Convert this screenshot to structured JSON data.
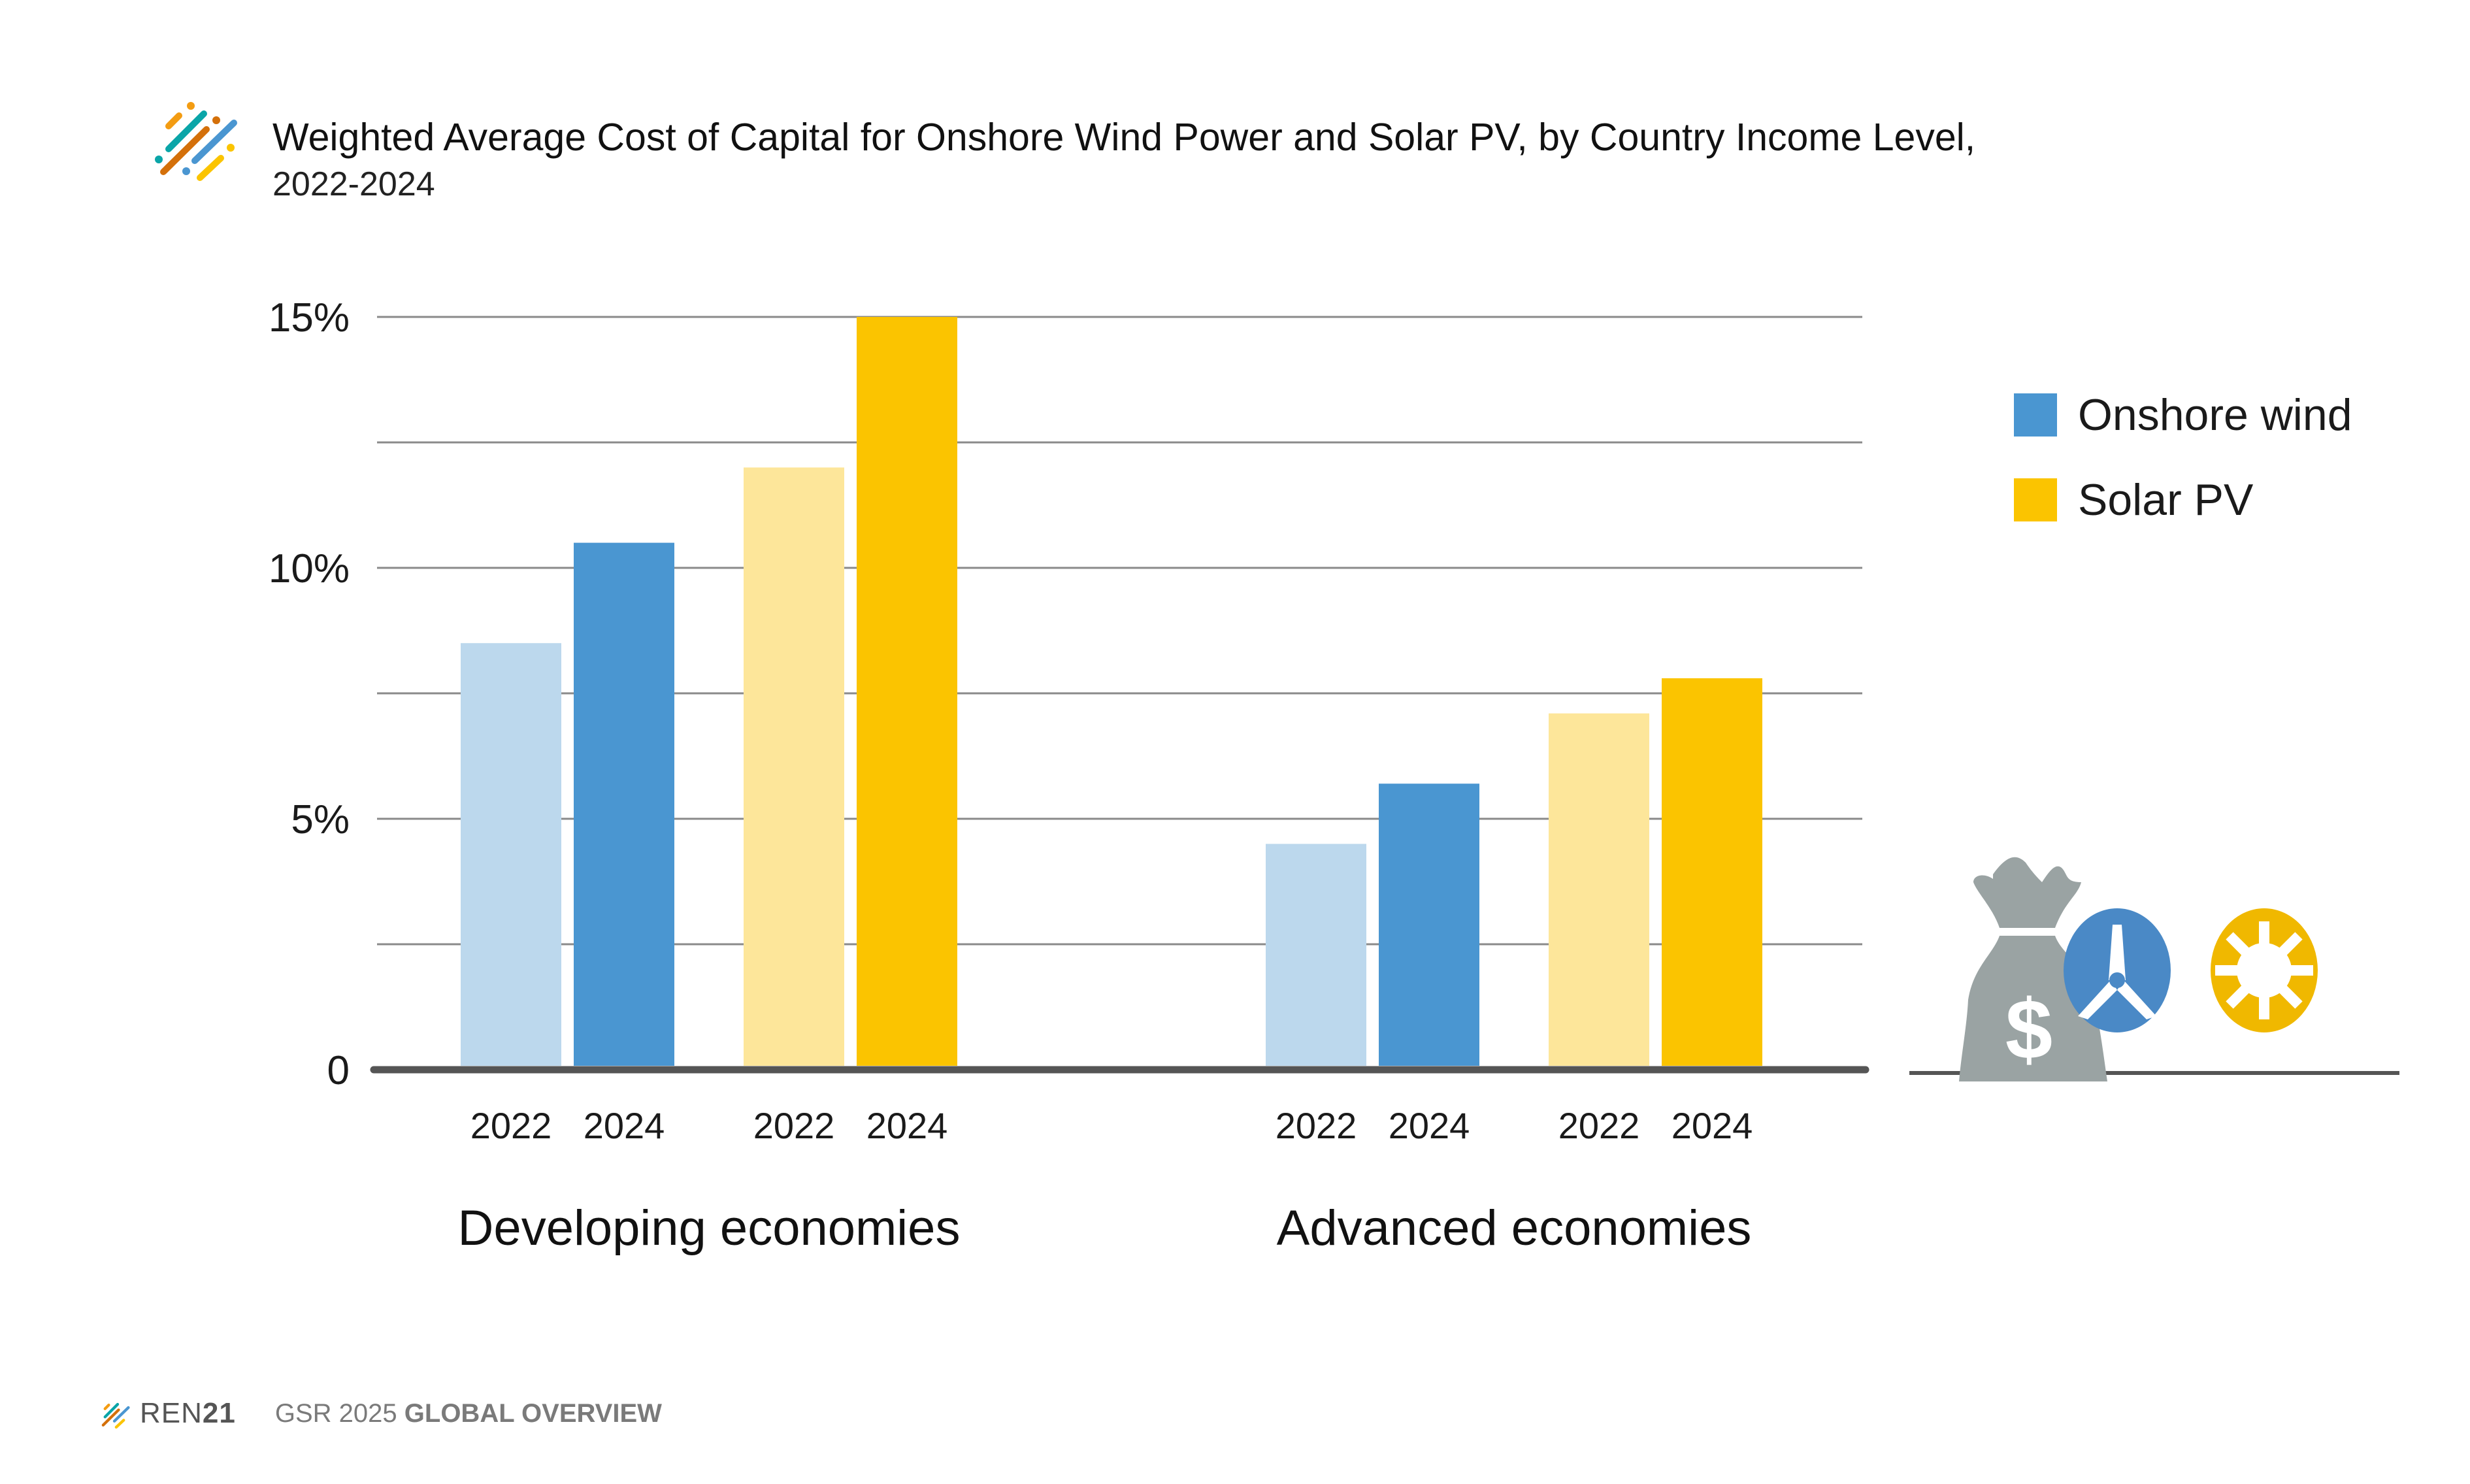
{
  "header": {
    "title": "Weighted Average Cost of Capital for Onshore Wind Power and Solar PV, by Country Income Level,",
    "subtitle": "2022-2024"
  },
  "legend": [
    {
      "label": "Onshore wind",
      "color": "#4a96d1"
    },
    {
      "label": "Solar PV",
      "color": "#fbc400"
    }
  ],
  "footer": {
    "brand_prefix": "REN",
    "brand_suffix": "21",
    "report": "GSR 2025",
    "section": "GLOBAL OVERVIEW"
  },
  "icons": [
    "money-bag-icon",
    "wind-turbine-icon",
    "sun-icon"
  ],
  "chart_data": {
    "type": "bar",
    "title": "Weighted Average Cost of Capital for Onshore Wind Power and Solar PV, by Country Income Level, 2022-2024",
    "xlabel": "",
    "ylabel": "",
    "ylim": [
      0,
      15
    ],
    "yticks": [
      {
        "value": 0,
        "label": "0"
      },
      {
        "value": 5,
        "label": "5%"
      },
      {
        "value": 10,
        "label": "10%"
      },
      {
        "value": 15,
        "label": "15%"
      }
    ],
    "minor_gridlines": [
      2.5,
      7.5,
      12.5
    ],
    "grid": true,
    "legend_position": "right",
    "groups": [
      {
        "name": "Developing economies",
        "bars": [
          {
            "series": "Onshore wind",
            "year": "2022",
            "value": 8.5,
            "color": "#bcd8ed"
          },
          {
            "series": "Onshore wind",
            "year": "2024",
            "value": 10.5,
            "color": "#4a96d1"
          },
          {
            "series": "Solar PV",
            "year": "2022",
            "value": 12.0,
            "color": "#fde69a"
          },
          {
            "series": "Solar PV",
            "year": "2024",
            "value": 15.0,
            "color": "#fbc400"
          }
        ]
      },
      {
        "name": "Advanced economies",
        "bars": [
          {
            "series": "Onshore wind",
            "year": "2022",
            "value": 4.5,
            "color": "#bcd8ed"
          },
          {
            "series": "Onshore wind",
            "year": "2024",
            "value": 5.7,
            "color": "#4a96d1"
          },
          {
            "series": "Solar PV",
            "year": "2022",
            "value": 7.1,
            "color": "#fde69a"
          },
          {
            "series": "Solar PV",
            "year": "2024",
            "value": 7.8,
            "color": "#fbc400"
          }
        ]
      }
    ]
  }
}
